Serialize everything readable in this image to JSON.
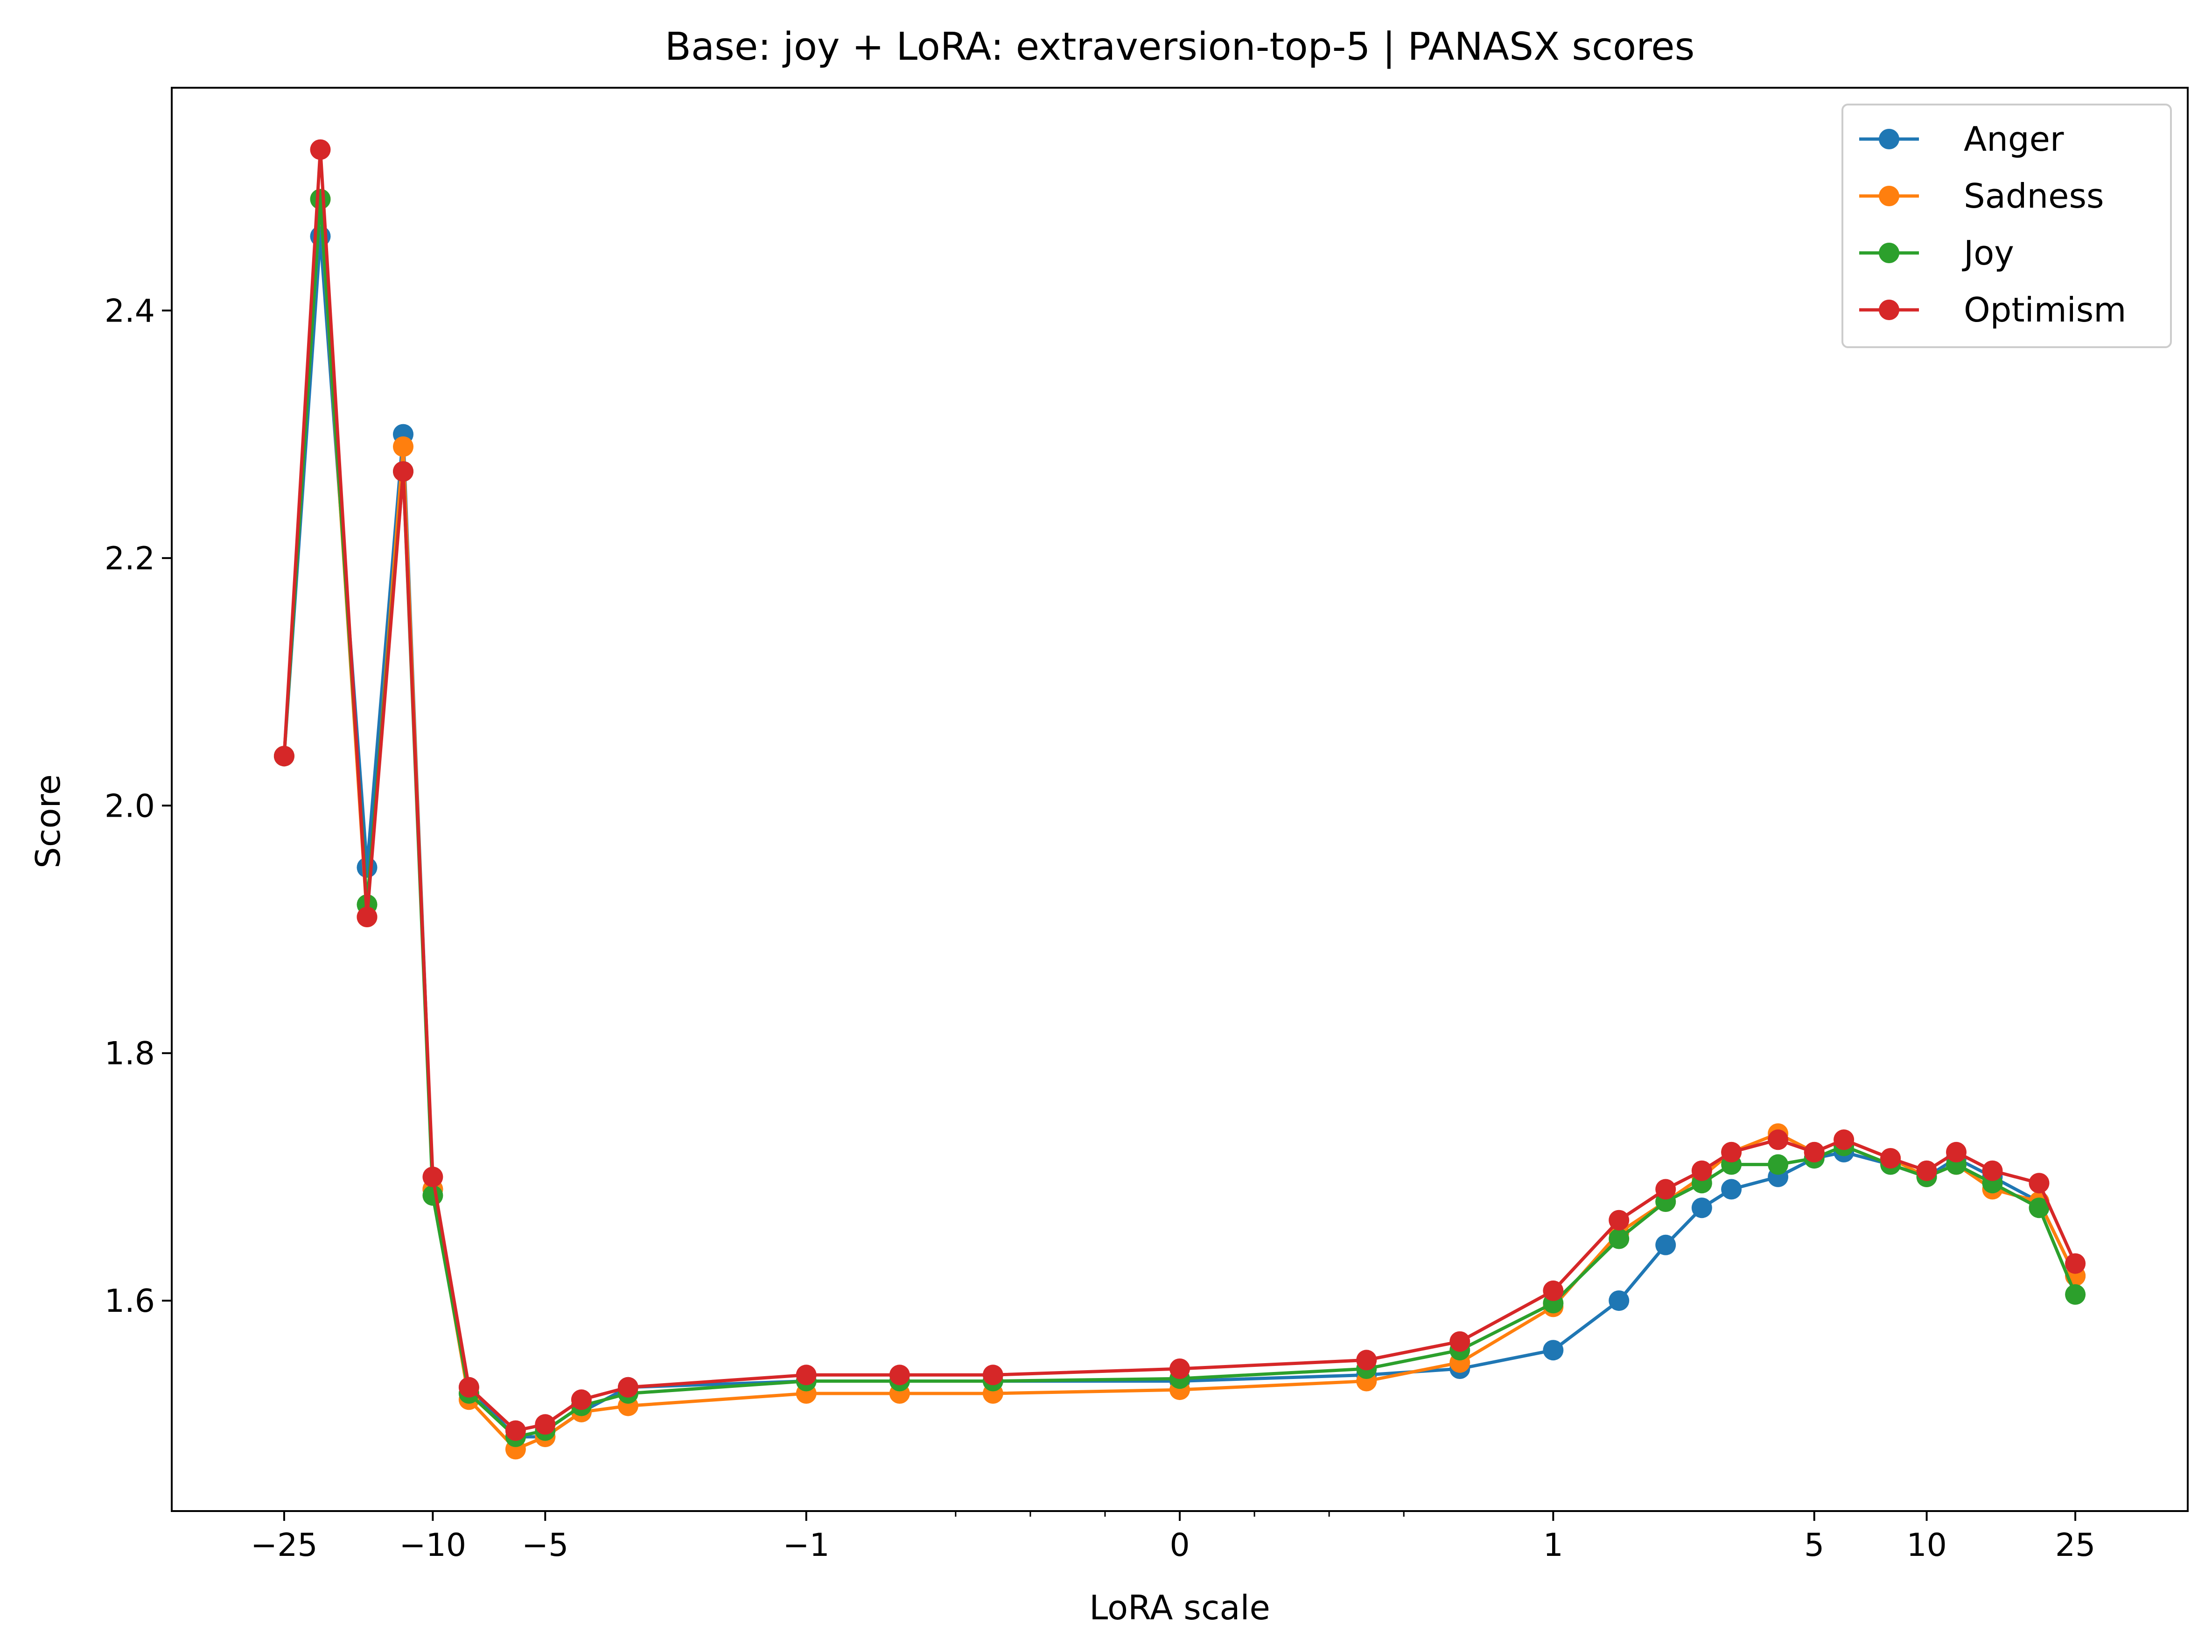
{
  "chart_data": {
    "type": "line",
    "title": "Base: joy + LoRA: extraversion-top-5 | PANASX scores",
    "xlabel": "LoRA scale",
    "ylabel": "Score",
    "x_scale": "symlog",
    "xlim": [
      -50,
      50
    ],
    "ylim": [
      1.43,
      2.58
    ],
    "x_ticks_major": [
      {
        "value": -25,
        "label": "−25"
      },
      {
        "value": -10,
        "label": "−10"
      },
      {
        "value": -5,
        "label": "−5"
      },
      {
        "value": -1,
        "label": "−1"
      },
      {
        "value": 0,
        "label": "0"
      },
      {
        "value": 1,
        "label": "1"
      },
      {
        "value": 5,
        "label": "5"
      },
      {
        "value": 10,
        "label": "10"
      },
      {
        "value": 25,
        "label": "25"
      }
    ],
    "x_ticks_minor": [
      -0.6,
      -0.4,
      -0.2,
      0.2,
      0.4,
      0.6
    ],
    "y_ticks": [
      {
        "value": 1.6,
        "label": "1.6"
      },
      {
        "value": 1.8,
        "label": "1.8"
      },
      {
        "value": 2.0,
        "label": "2.0"
      },
      {
        "value": 2.2,
        "label": "2.2"
      },
      {
        "value": 2.4,
        "label": "2.4"
      }
    ],
    "legend_position": "top-right",
    "grid": false,
    "x": [
      -25,
      -20,
      -15,
      -12,
      -10,
      -8,
      -6,
      -5,
      -4,
      -3,
      -1,
      -0.75,
      -0.5,
      0,
      0.5,
      0.75,
      1,
      1.5,
      2,
      2.5,
      3,
      4,
      5,
      6,
      8,
      10,
      12,
      15,
      20,
      25
    ],
    "series": [
      {
        "name": "Anger",
        "color": "#1f77b4",
        "values": [
          2.04,
          2.46,
          1.95,
          2.3,
          1.69,
          1.53,
          1.49,
          1.49,
          1.51,
          1.53,
          1.535,
          1.535,
          1.535,
          1.535,
          1.54,
          1.545,
          1.56,
          1.6,
          1.645,
          1.675,
          1.69,
          1.7,
          1.715,
          1.72,
          1.71,
          1.7,
          1.715,
          1.7,
          1.68,
          1.62
        ]
      },
      {
        "name": "Sadness",
        "color": "#ff7f0e",
        "values": [
          2.04,
          2.49,
          1.91,
          2.29,
          1.69,
          1.52,
          1.48,
          1.49,
          1.51,
          1.515,
          1.525,
          1.525,
          1.525,
          1.528,
          1.535,
          1.55,
          1.595,
          1.655,
          1.68,
          1.7,
          1.72,
          1.735,
          1.72,
          1.73,
          1.715,
          1.7,
          1.71,
          1.69,
          1.68,
          1.62
        ]
      },
      {
        "name": "Joy",
        "color": "#2ca02c",
        "values": [
          2.04,
          2.49,
          1.92,
          2.27,
          1.685,
          1.525,
          1.49,
          1.495,
          1.515,
          1.525,
          1.535,
          1.535,
          1.535,
          1.537,
          1.545,
          1.56,
          1.598,
          1.65,
          1.68,
          1.695,
          1.71,
          1.71,
          1.715,
          1.725,
          1.71,
          1.7,
          1.71,
          1.695,
          1.675,
          1.605
        ]
      },
      {
        "name": "Optimism",
        "color": "#d62728",
        "values": [
          2.04,
          2.53,
          1.91,
          2.27,
          1.7,
          1.53,
          1.495,
          1.5,
          1.52,
          1.53,
          1.54,
          1.54,
          1.54,
          1.545,
          1.552,
          1.567,
          1.608,
          1.665,
          1.69,
          1.705,
          1.72,
          1.73,
          1.72,
          1.73,
          1.715,
          1.705,
          1.72,
          1.705,
          1.695,
          1.63
        ]
      }
    ]
  }
}
